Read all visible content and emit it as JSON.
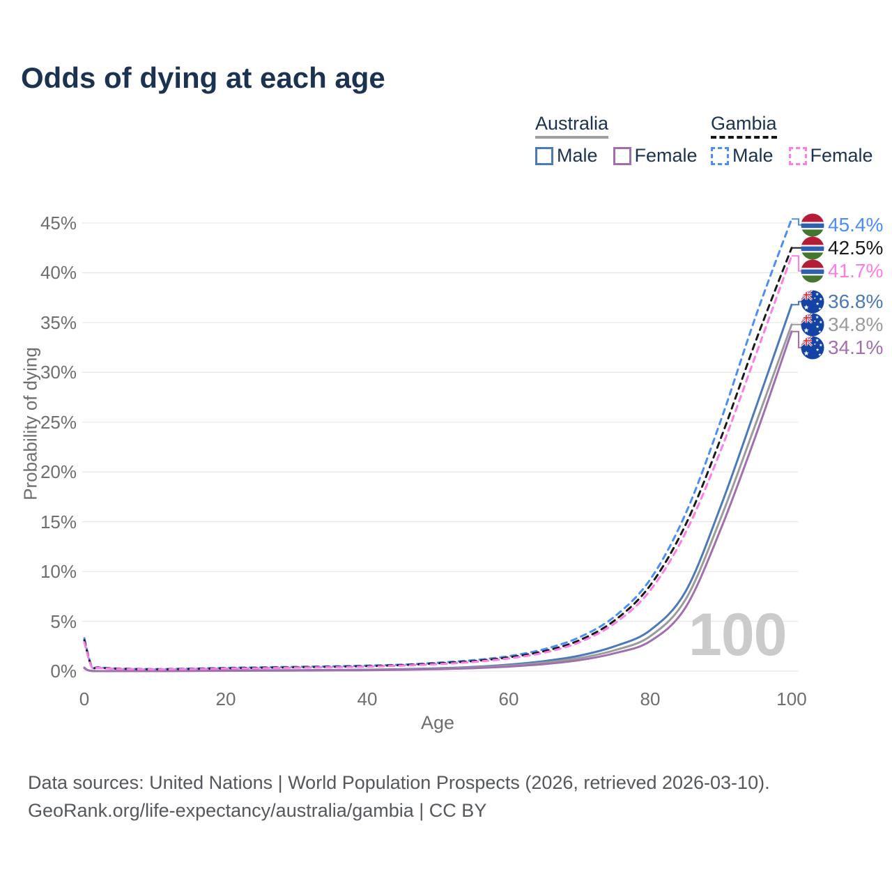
{
  "title": "Odds of dying at each age",
  "legend": {
    "australia_title": "Australia",
    "gambia_title": "Gambia",
    "australia_male_label": "Male",
    "australia_female_label": "Female",
    "gambia_male_label": "Male",
    "gambia_female_label": "Female"
  },
  "colors": {
    "title_text": "#1b3350",
    "axis_text": "#6e6e6e",
    "grid": "#e8e8e8",
    "watermark": "#cbcbcb",
    "footer_text": "#54585d",
    "australia_male": "#4a7ab8",
    "australia_persons": "#9b9b9b",
    "australia_female": "#a26fae",
    "gambia_male": "#4b8ef5",
    "gambia_persons": "#1a1a1a",
    "gambia_female": "#ff7ce6"
  },
  "chart_data": {
    "type": "line",
    "title": "Odds of dying at each age",
    "xlabel": "Age",
    "ylabel": "Probability of dying",
    "xlim": [
      0,
      100
    ],
    "ylim": [
      0,
      45
    ],
    "xticks": [
      0,
      20,
      40,
      60,
      80,
      100
    ],
    "yticks": [
      0,
      5,
      10,
      15,
      20,
      25,
      30,
      35,
      40,
      45
    ],
    "ytick_format": "percent",
    "grid": "horizontal",
    "legend_position": "top-right",
    "watermark": "100",
    "series": [
      {
        "id": "australia_male",
        "name": "Australia Male",
        "country": "Australia",
        "sex": "Male",
        "style": "solid",
        "color": "australia_male",
        "end_value_pct": 36.8,
        "points": [
          [
            0,
            0.35
          ],
          [
            1,
            0.03
          ],
          [
            5,
            0.01
          ],
          [
            10,
            0.01
          ],
          [
            15,
            0.04
          ],
          [
            20,
            0.07
          ],
          [
            25,
            0.08
          ],
          [
            30,
            0.09
          ],
          [
            35,
            0.11
          ],
          [
            40,
            0.14
          ],
          [
            45,
            0.19
          ],
          [
            50,
            0.28
          ],
          [
            55,
            0.42
          ],
          [
            60,
            0.65
          ],
          [
            65,
            1.0
          ],
          [
            70,
            1.55
          ],
          [
            75,
            2.5
          ],
          [
            80,
            4.1
          ],
          [
            85,
            8.0
          ],
          [
            90,
            16.6
          ],
          [
            95,
            26.6
          ],
          [
            100,
            36.8
          ]
        ]
      },
      {
        "id": "australia_persons",
        "name": "Australia (both sexes)",
        "country": "Australia",
        "sex": "Persons",
        "style": "solid",
        "color": "australia_persons",
        "end_value_pct": 34.8,
        "points": [
          [
            0,
            0.33
          ],
          [
            1,
            0.03
          ],
          [
            5,
            0.01
          ],
          [
            10,
            0.01
          ],
          [
            15,
            0.03
          ],
          [
            20,
            0.05
          ],
          [
            25,
            0.06
          ],
          [
            30,
            0.07
          ],
          [
            35,
            0.09
          ],
          [
            40,
            0.12
          ],
          [
            45,
            0.16
          ],
          [
            50,
            0.24
          ],
          [
            55,
            0.36
          ],
          [
            60,
            0.55
          ],
          [
            65,
            0.85
          ],
          [
            70,
            1.3
          ],
          [
            75,
            2.1
          ],
          [
            80,
            3.5
          ],
          [
            85,
            7.2
          ],
          [
            90,
            15.4
          ],
          [
            95,
            25.0
          ],
          [
            100,
            34.8
          ]
        ]
      },
      {
        "id": "australia_female",
        "name": "Australia Female",
        "country": "Australia",
        "sex": "Female",
        "style": "solid",
        "color": "australia_female",
        "end_value_pct": 34.1,
        "points": [
          [
            0,
            0.3
          ],
          [
            1,
            0.02
          ],
          [
            5,
            0.01
          ],
          [
            10,
            0.01
          ],
          [
            15,
            0.02
          ],
          [
            20,
            0.03
          ],
          [
            25,
            0.04
          ],
          [
            30,
            0.05
          ],
          [
            35,
            0.07
          ],
          [
            40,
            0.09
          ],
          [
            45,
            0.13
          ],
          [
            50,
            0.19
          ],
          [
            55,
            0.29
          ],
          [
            60,
            0.45
          ],
          [
            65,
            0.7
          ],
          [
            70,
            1.1
          ],
          [
            75,
            1.8
          ],
          [
            80,
            3.0
          ],
          [
            85,
            6.4
          ],
          [
            90,
            14.3
          ],
          [
            95,
            23.8
          ],
          [
            100,
            34.1
          ]
        ]
      },
      {
        "id": "gambia_male",
        "name": "Gambia Male",
        "country": "Gambia",
        "sex": "Male",
        "style": "dashed",
        "color": "gambia_male",
        "end_value_pct": 45.4,
        "points": [
          [
            0,
            3.3
          ],
          [
            1,
            0.55
          ],
          [
            2,
            0.38
          ],
          [
            5,
            0.25
          ],
          [
            10,
            0.2
          ],
          [
            15,
            0.25
          ],
          [
            20,
            0.32
          ],
          [
            25,
            0.38
          ],
          [
            30,
            0.43
          ],
          [
            35,
            0.48
          ],
          [
            40,
            0.55
          ],
          [
            45,
            0.65
          ],
          [
            50,
            0.85
          ],
          [
            55,
            1.1
          ],
          [
            60,
            1.5
          ],
          [
            65,
            2.2
          ],
          [
            70,
            3.4
          ],
          [
            75,
            5.5
          ],
          [
            80,
            9.2
          ],
          [
            85,
            15.8
          ],
          [
            90,
            25.2
          ],
          [
            95,
            35.8
          ],
          [
            100,
            45.4
          ]
        ]
      },
      {
        "id": "gambia_persons",
        "name": "Gambia (both sexes)",
        "country": "Gambia",
        "sex": "Persons",
        "style": "dashed",
        "color": "gambia_persons",
        "end_value_pct": 42.5,
        "points": [
          [
            0,
            3.1
          ],
          [
            1,
            0.5
          ],
          [
            2,
            0.35
          ],
          [
            5,
            0.23
          ],
          [
            10,
            0.18
          ],
          [
            15,
            0.22
          ],
          [
            20,
            0.28
          ],
          [
            25,
            0.33
          ],
          [
            30,
            0.38
          ],
          [
            35,
            0.43
          ],
          [
            40,
            0.5
          ],
          [
            45,
            0.6
          ],
          [
            50,
            0.78
          ],
          [
            55,
            1.0
          ],
          [
            60,
            1.38
          ],
          [
            65,
            2.0
          ],
          [
            70,
            3.1
          ],
          [
            75,
            5.1
          ],
          [
            80,
            8.6
          ],
          [
            85,
            14.7
          ],
          [
            90,
            23.4
          ],
          [
            95,
            33.3
          ],
          [
            100,
            42.5
          ]
        ]
      },
      {
        "id": "gambia_female",
        "name": "Gambia Female",
        "country": "Gambia",
        "sex": "Female",
        "style": "dashed",
        "color": "gambia_female",
        "end_value_pct": 41.7,
        "points": [
          [
            0,
            2.9
          ],
          [
            1,
            0.46
          ],
          [
            2,
            0.32
          ],
          [
            5,
            0.21
          ],
          [
            10,
            0.17
          ],
          [
            15,
            0.2
          ],
          [
            20,
            0.25
          ],
          [
            25,
            0.29
          ],
          [
            30,
            0.34
          ],
          [
            35,
            0.39
          ],
          [
            40,
            0.45
          ],
          [
            45,
            0.55
          ],
          [
            50,
            0.7
          ],
          [
            55,
            0.92
          ],
          [
            60,
            1.27
          ],
          [
            65,
            1.85
          ],
          [
            70,
            2.9
          ],
          [
            75,
            4.8
          ],
          [
            80,
            8.1
          ],
          [
            85,
            13.9
          ],
          [
            90,
            22.2
          ],
          [
            95,
            31.9
          ],
          [
            100,
            41.7
          ]
        ]
      }
    ]
  },
  "end_labels": [
    {
      "country": "Gambia",
      "series": "gambia_male",
      "flag": "gambia-flag-icon",
      "flag_ref": "#flag-gambia",
      "value": "45.4%",
      "value_num": 45.4
    },
    {
      "country": "Gambia",
      "series": "gambia_persons",
      "flag": "gambia-flag-icon",
      "flag_ref": "#flag-gambia",
      "value": "42.5%",
      "value_num": 42.5
    },
    {
      "country": "Gambia",
      "series": "gambia_female",
      "flag": "gambia-flag-icon",
      "flag_ref": "#flag-gambia",
      "value": "41.7%",
      "value_num": 41.7
    },
    {
      "country": "Australia",
      "series": "australia_male",
      "flag": "australia-flag-icon",
      "flag_ref": "#flag-australia",
      "value": "36.8%",
      "value_num": 36.8
    },
    {
      "country": "Australia",
      "series": "australia_persons",
      "flag": "australia-flag-icon",
      "flag_ref": "#flag-australia",
      "value": "34.8%",
      "value_num": 34.8
    },
    {
      "country": "Australia",
      "series": "australia_female",
      "flag": "australia-flag-icon",
      "flag_ref": "#flag-australia",
      "value": "34.1%",
      "value_num": 34.1
    }
  ],
  "footer": {
    "line1": "Data sources: United Nations | World Population Prospects (2026, retrieved 2026-03-10).",
    "line2": "GeoRank.org/life-expectancy/australia/gambia | CC BY"
  }
}
